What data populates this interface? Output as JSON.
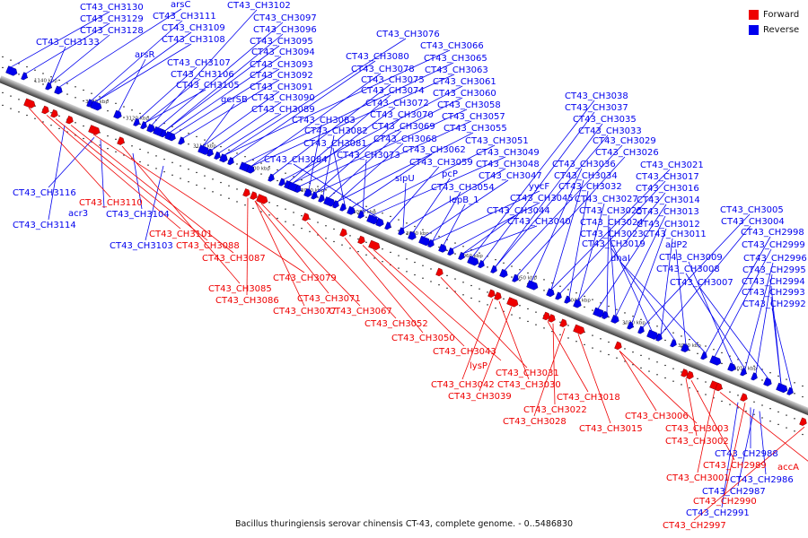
{
  "legend": {
    "forward_label": "Forward",
    "reverse_label": "Reverse",
    "forward_color": "#ee0000",
    "reverse_color": "#0000ee"
  },
  "caption": "Bacillus thuringiensis serovar chinensis CT-43, complete genome. - 0..5486830",
  "scale_labels": [
    "1140 kbp",
    "3130 kbp",
    "3120 kbp",
    "3110 kbp",
    "3100 kbp",
    "3090 kbp",
    "3080 kbp",
    "3070 kbp",
    "3060 kbp",
    "3050 kbp",
    "3040 kbp",
    "3030 kbp",
    "3020 kbp",
    "3010 kbp"
  ],
  "reverse_labels_top": [
    "CT43_CH3130",
    "CT43_CH3129",
    "CT43_CH3128",
    "CT43_CH3133",
    "arsC",
    "CT43_CH3111",
    "CT43_CH3109",
    "CT43_CH3108",
    "arsR",
    "CT43_CH3107",
    "CT43_CH3106",
    "CT43_CH3105",
    "CT43_CH3102",
    "CT43_CH3097",
    "CT43_CH3096",
    "CT43_CH3095",
    "CT43_CH3094",
    "CT43_CH3093",
    "CT43_CH3092",
    "CT43_CH3091",
    "gerSB",
    "CT43_CH3090",
    "CT43_CH3089",
    "CT43_CH3076",
    "CT43_CH3066",
    "CT43_CH3080",
    "CT43_CH3065",
    "CT43_CH3078",
    "CT43_CH3063",
    "CT43_CH3075",
    "CT43_CH3061",
    "CT43_CH3074",
    "CT43_CH3060",
    "CT43_CH3072",
    "CT43_CH3058",
    "CT43_CH3083",
    "CT43_CH3070",
    "CT43_CH3057",
    "CT43_CH3082",
    "CT43_CH3069",
    "CT43_CH3055",
    "CT43_CH3068",
    "CT43_CH3081",
    "CT43_CH3062",
    "CT43_CH3051",
    "CT43_CH3073",
    "CT43_CH3049",
    "CT43_CH3084",
    "CT43_CH3059",
    "CT43_CH3048",
    "sipU",
    "pcP",
    "CT43_CH3047",
    "CT43_CH3054",
    "yycF",
    "lepB_1",
    "CT43_CH3045",
    "CT43_CH3044",
    "CT43_CH3040",
    "CT43_CH3038",
    "CT43_CH3037",
    "CT43_CH3035",
    "CT43_CH3033",
    "CT43_CH3029",
    "CT43_CH3026",
    "CT43_CH3036",
    "CT43_CH3021",
    "CT43_CH3034",
    "CT43_CH3017",
    "CT43_CH3032",
    "CT43_CH3016",
    "CT43_CH3027",
    "CT43_CH3014",
    "CT43_CH3025",
    "CT43_CH3013",
    "CT43_CH3024",
    "CT43_CH3012",
    "CT43_CH3005",
    "CT43_CH3023",
    "CT43_CH3011",
    "CT43_CH3004",
    "CT43_CH3019",
    "adP2",
    "CT43_CH2998",
    "dnaI",
    "CT43_CH2999",
    "CT43_CH3009",
    "CT43_CH2996",
    "CT43_CH3008",
    "CT43_CH2995",
    "CT43_CH3007",
    "CT43_CH2994",
    "CT43_CH2993",
    "CT43_CH2992"
  ],
  "reverse_labels_bottom": [
    "CT43_CH3116",
    "acr3",
    "CT43_CH3104",
    "CT43_CH3114",
    "CT43_CH3103",
    "CT43_CH2988",
    "CT43_CH2986",
    "CT43_CH2987",
    "CT43_CH2991"
  ],
  "forward_labels": [
    "CT43_CH3110",
    "CT43_CH3101",
    "CT43_CH3088",
    "CT43_CH3087",
    "CT43_CH3079",
    "CT43_CH3085",
    "CT43_CH3086",
    "CT43_CH3071",
    "CT43_CH3077",
    "CT43_CH3067",
    "CT43_CH3052",
    "CT43_CH3050",
    "CT43_CH3043",
    "lysP",
    "CT43_CH3031",
    "CT43_CH3042",
    "CT43_CH3030",
    "CT43_CH3039",
    "CT43_CH3018",
    "CT43_CH3022",
    "CT43_CH3028",
    "CT43_CH3015",
    "CT43_CH3006",
    "CT43_CH3003",
    "CT43_CH3002",
    "CT43_CH2989",
    "CT43_CH3001",
    "accA",
    "CT43_CH2990",
    "CT43_CH2997"
  ]
}
